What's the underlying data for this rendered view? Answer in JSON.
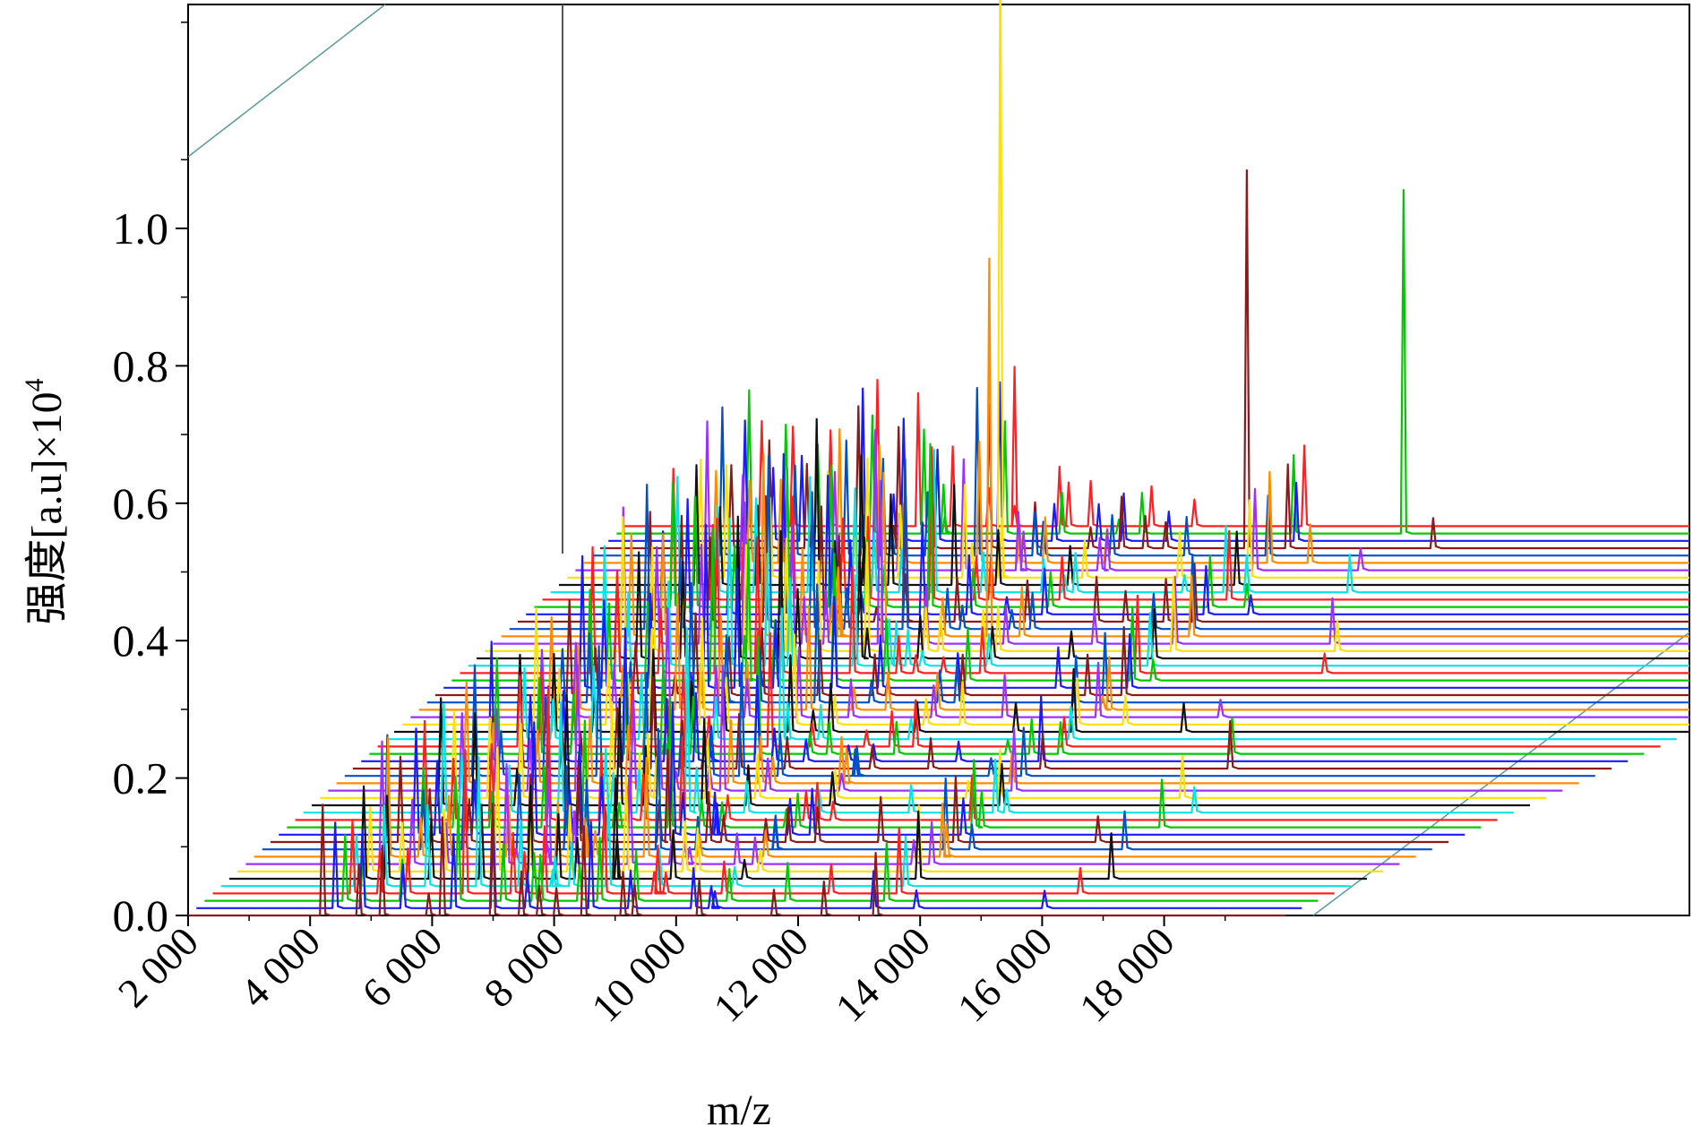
{
  "chart_data": {
    "type": "line",
    "style": "3d-waterfall",
    "title": "",
    "xlabel": "m/z",
    "ylabel": "强度[a.u]×10",
    "ylabel_superscript": "4",
    "xlim": [
      2000,
      20000
    ],
    "ylim": [
      0,
      1.0
    ],
    "x_ticks": [
      2000,
      4000,
      6000,
      8000,
      10000,
      12000,
      14000,
      16000,
      18000
    ],
    "x_tick_labels": [
      "2 000",
      "4 000",
      "6 000",
      "8 000",
      "10 000",
      "12 000",
      "14 000",
      "16 000",
      "18 000"
    ],
    "y_ticks": [
      0.0,
      0.2,
      0.4,
      0.6,
      0.8,
      1.0
    ],
    "y_tick_labels": [
      "0.0",
      "0.2",
      "0.4",
      "0.6",
      "0.8",
      "1.0"
    ],
    "series_count": 54,
    "series_colors": [
      "#8b1a1a",
      "#1a1aff",
      "#00c800",
      "#ff2020",
      "#00e5e5",
      "#111111",
      "#ffe000",
      "#9b30ff",
      "#ff8c00",
      "#0050c8"
    ],
    "peaks": [
      {
        "mz": 4200,
        "intensity": 0.12
      },
      {
        "mz": 4700,
        "intensity": 0.09
      },
      {
        "mz": 5300,
        "intensity": 0.08
      },
      {
        "mz": 6200,
        "intensity": 0.14
      },
      {
        "mz": 6900,
        "intensity": 0.11
      },
      {
        "mz": 7400,
        "intensity": 0.07
      },
      {
        "mz": 8400,
        "intensity": 0.13
      },
      {
        "mz": 9200,
        "intensity": 0.05
      },
      {
        "mz": 10500,
        "intensity": 0.04
      },
      {
        "mz": 13200,
        "intensity": 0.07
      }
    ],
    "grid": false,
    "legend": "none"
  }
}
